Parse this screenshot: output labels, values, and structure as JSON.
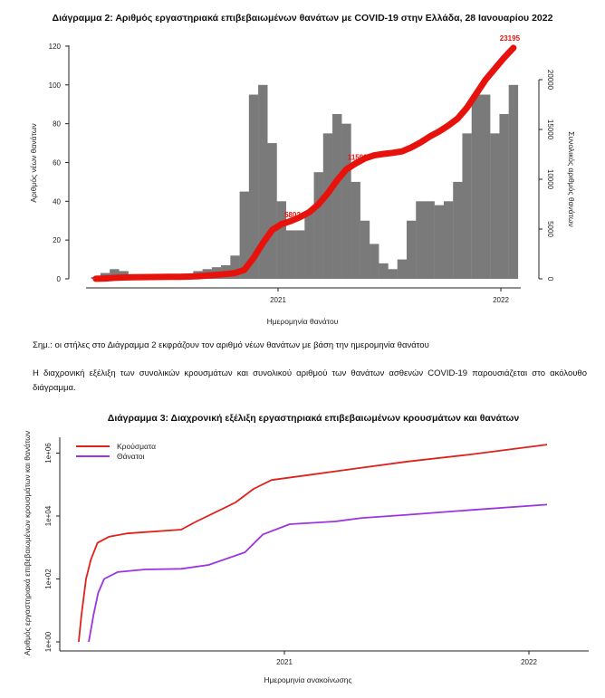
{
  "note": "Σημ.: οι στήλες στο Διάγραμμα 2 εκφράζουν τον αριθμό νέων θανάτων με βάση την ημερομηνία θανάτου",
  "paragraph": "Η διαχρονική εξέλιξη των συνολικών κρουσμάτων και συνολικού αριθμού των θανάτων ασθενών COVID-19 παρουσιάζεται στο ακόλουθο διάγραμμα.",
  "colors": {
    "bars": "#7a7a7a",
    "cumulative": "#e8120c",
    "cases": "#e0201b",
    "deaths": "#9b35e0"
  },
  "chart_data": [
    {
      "type": "bar",
      "title": "Διάγραμμα 2: Αριθμός εργαστηριακά επιβεβαιωμένων θανάτων με COVID-19 στην Ελλάδα, 28 Ιανουαρίου 2022",
      "xlabel": "Ημερομηνία θανάτου",
      "ylabel": "Αριθμός νέων θανάτων",
      "y2label": "Συνολικός αριθμός θανάτων",
      "x_unit": "half-month bins from March 2020 to January 2022",
      "x_ticks": [
        "2021",
        "2022"
      ],
      "ylim": [
        0,
        120
      ],
      "y_ticks": [
        "0",
        "20",
        "40",
        "60",
        "80",
        "100",
        "120"
      ],
      "y2_ticks": [
        "0",
        "5000",
        "10000",
        "15000",
        "20000"
      ],
      "series": [
        {
          "name": "new_deaths_daily_avg",
          "values": [
            1,
            3,
            5,
            4,
            2,
            1,
            1,
            1,
            1,
            1,
            2,
            4,
            5,
            6,
            7,
            12,
            45,
            95,
            100,
            70,
            40,
            25,
            25,
            35,
            55,
            75,
            85,
            80,
            50,
            30,
            18,
            8,
            5,
            10,
            30,
            40,
            40,
            38,
            40,
            50,
            75,
            95,
            95,
            75,
            85,
            100
          ]
        },
        {
          "name": "cumulative_deaths",
          "values": [
            5,
            40,
            100,
            140,
            160,
            175,
            185,
            195,
            200,
            210,
            230,
            260,
            330,
            400,
            480,
            580,
            900,
            2100,
            3600,
            4900,
            5500,
            5802,
            6200,
            6700,
            7500,
            8600,
            9900,
            11000,
            11592,
            12100,
            12400,
            12550,
            12650,
            12800,
            13200,
            13700,
            14300,
            14800,
            15400,
            16100,
            17200,
            18600,
            20000,
            21100,
            22200,
            23195
          ]
        }
      ],
      "annotations": [
        {
          "label": "5802",
          "bin": 21
        },
        {
          "label": "11592",
          "bin": 28
        },
        {
          "label": "23195",
          "bin": 45
        }
      ]
    },
    {
      "type": "line",
      "title": "Διάγραμμα 3: Διαχρονική εξέλιξη εργαστηριακά επιβεβαιωμένων κρουσμάτων και θανάτων",
      "xlabel": "Ημερομηνία ανακοίνωσης",
      "ylabel": "Αριθμός εργαστηριακά επιβεβαιωμένων κρουσμάτων και θανάτων",
      "x_unit": "days since 2020-01-01",
      "x_ticks": [
        {
          "label": "2021",
          "x": 366
        },
        {
          "label": "2022",
          "x": 731
        }
      ],
      "y_scale": "log10",
      "y_ticks": [
        {
          "label": "1e+00",
          "v": 1
        },
        {
          "label": "1e+02",
          "v": 100
        },
        {
          "label": "1e+04",
          "v": 10000
        },
        {
          "label": "1e+06",
          "v": 1000000
        }
      ],
      "legend": "top-left",
      "series": [
        {
          "name": "Κρούσματα",
          "x": [
            59,
            63,
            70,
            77,
            87,
            104,
            131,
            212,
            232,
            293,
            320,
            347,
            401,
            469,
            550,
            645,
            758
          ],
          "y": [
            1,
            7,
            100,
            400,
            1400,
            2200,
            2800,
            3700,
            6300,
            27000,
            73000,
            140000,
            200000,
            316000,
            540000,
            910000,
            1860000
          ]
        },
        {
          "name": "Θάνατοι",
          "x": [
            74,
            81,
            88,
            97,
            117,
            158,
            212,
            253,
            307,
            334,
            374,
            442,
            482,
            550,
            645,
            758
          ],
          "y": [
            1,
            7,
            36,
            100,
            165,
            200,
            210,
            280,
            700,
            2600,
            5500,
            6700,
            8700,
            11000,
            15600,
            23000
          ]
        }
      ]
    }
  ]
}
